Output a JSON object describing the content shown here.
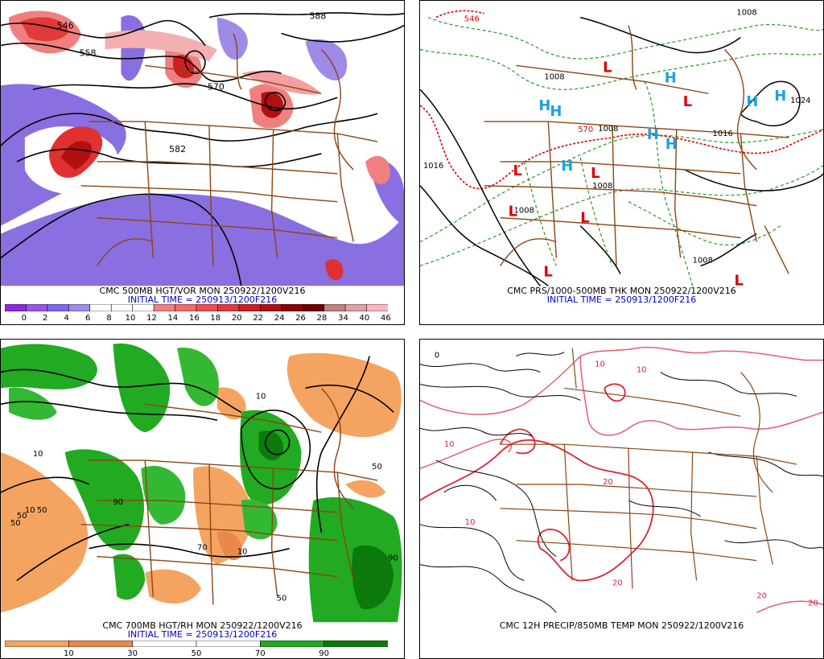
{
  "panels": [
    {
      "id": "vorticity",
      "caption_line1": "CMC 500MB HGT/VOR MON 250922/1200V216",
      "caption_line2": "INITIAL TIME = 250913/1200F216",
      "height_labels": [
        "546",
        "558",
        "570",
        "582",
        "588"
      ],
      "colorbar": {
        "labels": [
          "0",
          "2",
          "4",
          "6",
          "8",
          "10",
          "12",
          "14",
          "16",
          "18",
          "20",
          "22",
          "24",
          "26",
          "28",
          "34",
          "40",
          "46"
        ],
        "colors": [
          "#8a2be2",
          "#9b55e6",
          "#7b68ee",
          "#a08be6",
          "#ffffff",
          "#ffffff",
          "#ffffff",
          "#f08080",
          "#f26a6a",
          "#e85050",
          "#e03a3a",
          "#cc2020",
          "#b01010",
          "#900000",
          "#700000",
          "#c08080",
          "#e0a0a8",
          "#ffb6c1"
        ]
      }
    },
    {
      "id": "surface",
      "caption_line1": "CMC PRS/1000-500MB THK MON 250922/1200V216",
      "caption_line2": "INITIAL TIME = 250913/1200F216",
      "labels": [
        "546",
        "1008",
        "570",
        "1008",
        "1008",
        "1008",
        "1008",
        "1016",
        "1024",
        "1016",
        "1008"
      ],
      "highs": [
        "H",
        "H",
        "H",
        "H",
        "H",
        "H",
        "H",
        "H"
      ],
      "lows": [
        "L",
        "L",
        "L",
        "L",
        "L",
        "L",
        "L",
        "L"
      ],
      "high_color": "#1aa3e0",
      "low_color": "#dd0000"
    },
    {
      "id": "humidity",
      "caption_line1": "CMC 700MB HGT/RH MON 250922/1200V216",
      "caption_line2": "INITIAL TIME = 250913/1200F216",
      "labels": [
        "10",
        "50",
        "10",
        "50",
        "90",
        "50",
        "70",
        "10",
        "50",
        "90",
        "10",
        "50"
      ],
      "colorbar": {
        "labels": [
          "10",
          "30",
          "50",
          "70",
          "90"
        ],
        "colors": [
          "#f4a460",
          "#e8884a",
          "#ffffff",
          "#ffffff",
          "#22aa22",
          "#0c7a0c"
        ]
      }
    },
    {
      "id": "precip",
      "caption_line1": "CMC 12H PRECIP/850MB TEMP MON 250922/1200V216",
      "labels": [
        "0",
        "10",
        "10",
        "10",
        "10",
        "20",
        "20",
        "20",
        "20"
      ]
    }
  ]
}
